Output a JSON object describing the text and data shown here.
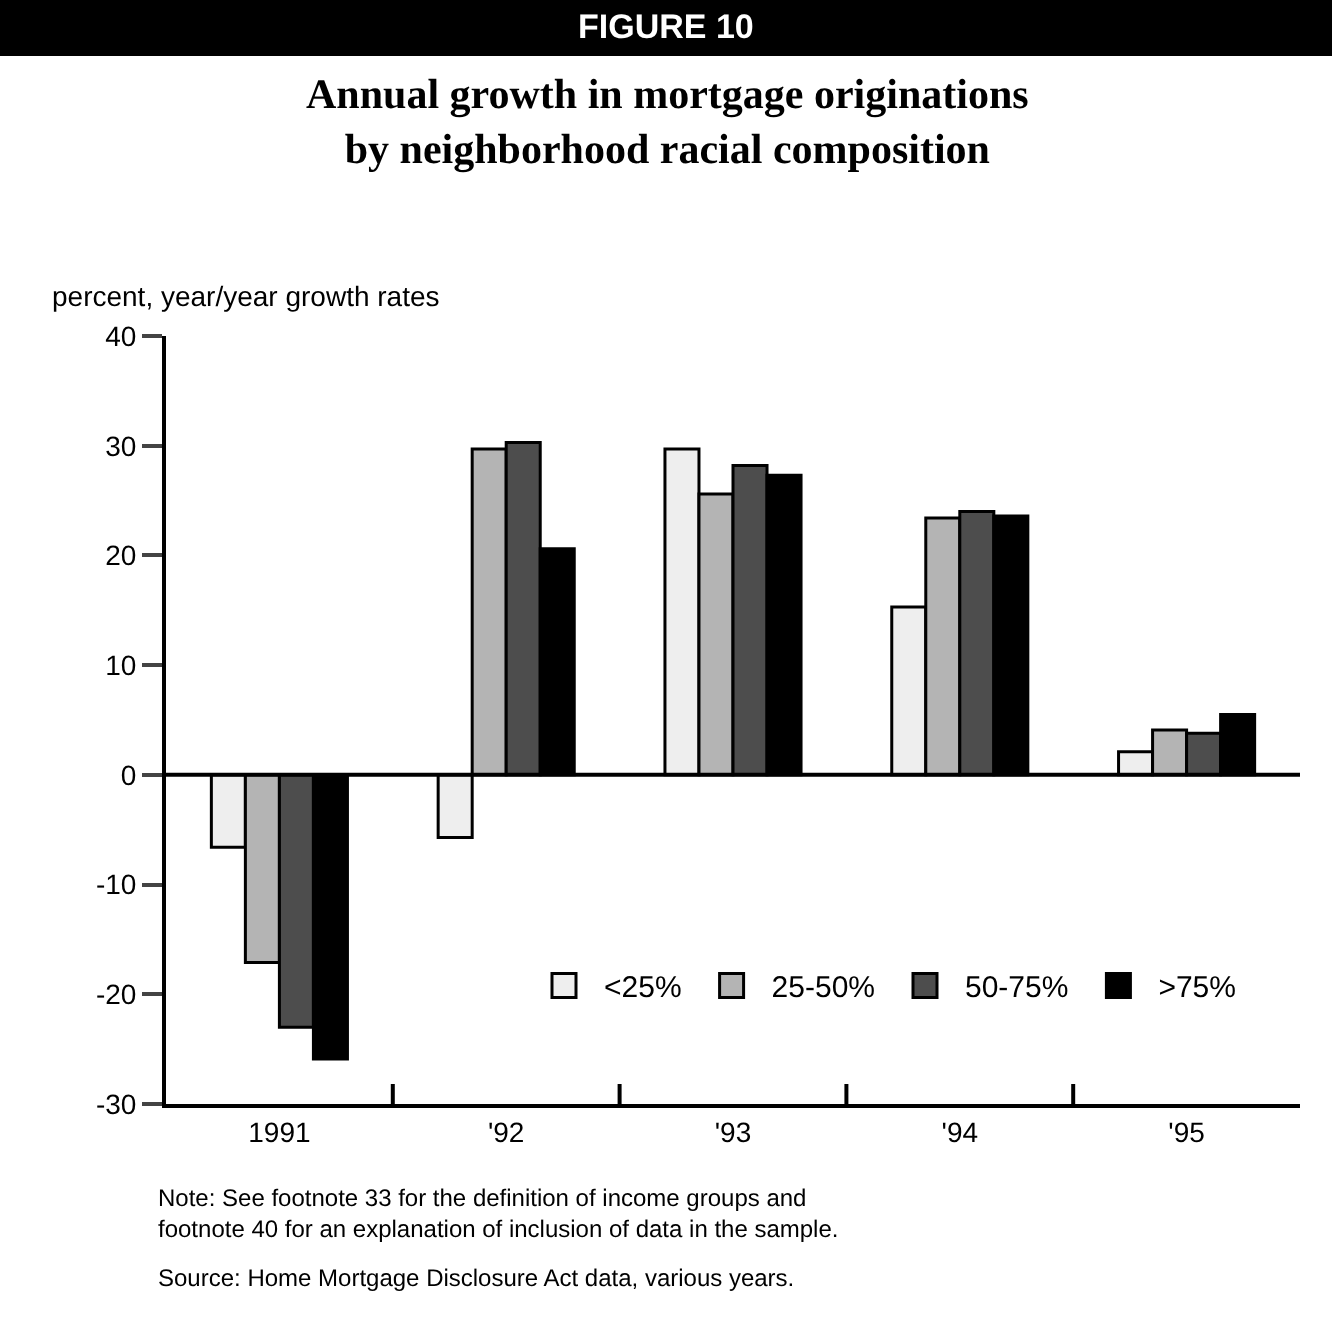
{
  "chart_data": {
    "type": "bar",
    "title": "FIGURE 10",
    "subtitle": "Annual growth in mortgage originations\nby neighborhood racial composition",
    "ylabel": "percent, year/year growth rates",
    "categories": [
      "1991",
      "'92",
      "'93",
      "'94",
      "'95"
    ],
    "series": [
      {
        "name": "<25%",
        "color": "#eeeeee",
        "values": [
          -6.6,
          -5.7,
          29.7,
          15.3,
          2.1
        ]
      },
      {
        "name": "25-50%",
        "color": "#b4b4b4",
        "values": [
          -17.1,
          29.7,
          25.6,
          23.4,
          4.1
        ]
      },
      {
        "name": "50-75%",
        "color": "#4d4d4d",
        "values": [
          -23.0,
          30.3,
          28.2,
          24.0,
          3.8
        ]
      },
      {
        "name": ">75%",
        "color": "#000000",
        "values": [
          -25.9,
          20.6,
          27.3,
          23.6,
          5.5
        ]
      }
    ],
    "ylim": [
      -30,
      40
    ],
    "yticks": [
      -30,
      -20,
      -10,
      0,
      10,
      20,
      30,
      40
    ],
    "ref_lines": [
      {
        "axis": "y",
        "value": 0,
        "color": "#000000"
      }
    ],
    "legend": "bottom right",
    "annotations": [
      "Note: See footnote 33 for the definition of income groups and\nfootnote 40 for an explanation of inclusion of data in the sample.",
      "Source: Home Mortgage Disclosure Act data, various years."
    ]
  }
}
